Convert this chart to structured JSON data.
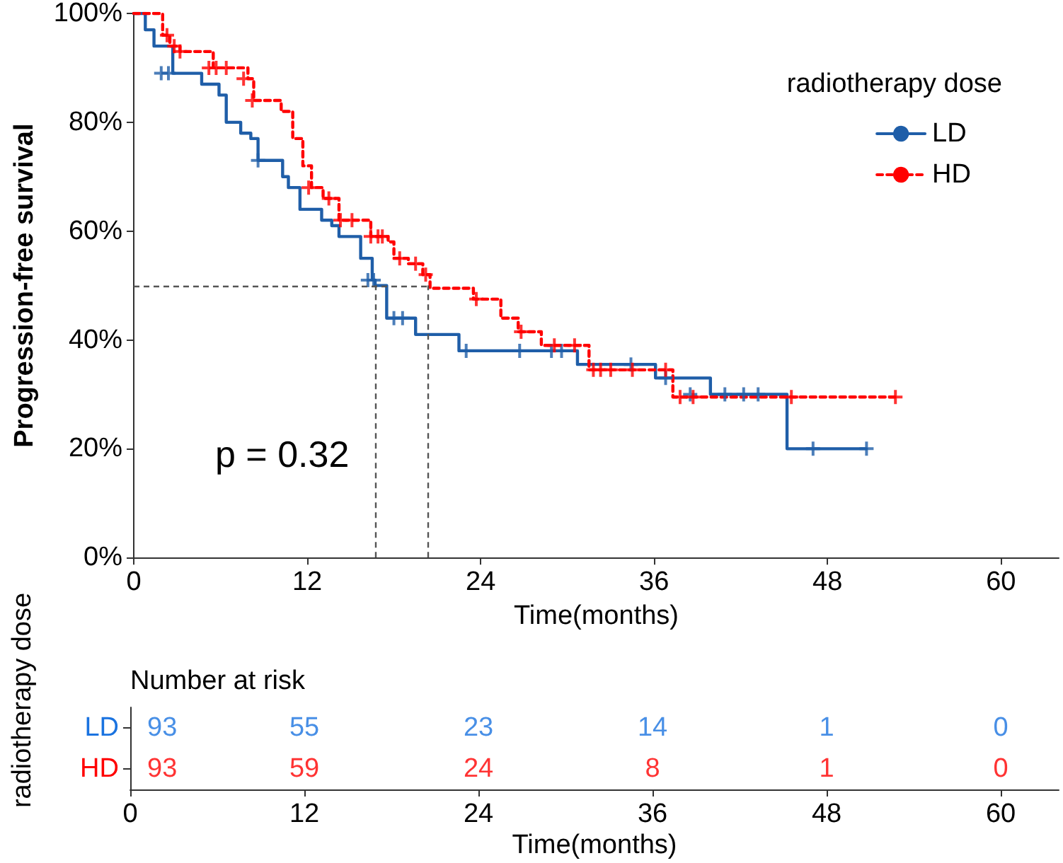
{
  "chart_data": [
    {
      "type": "step",
      "ylabel": "Progression-free survival",
      "xlabel": "Time(months)",
      "legend_title": "radiotherapy dose",
      "legend": "top right",
      "marker": "none",
      "grid": false,
      "xlim": [
        0,
        64
      ],
      "xticks": [
        0,
        12,
        24,
        36,
        48,
        60
      ],
      "ylim": [
        0,
        100
      ],
      "yticks": [
        {
          "value": 0,
          "label": "0%"
        },
        {
          "value": 20,
          "label": "20%"
        },
        {
          "value": 40,
          "label": "40%"
        },
        {
          "value": 60,
          "label": "60%"
        },
        {
          "value": 80,
          "label": "80%"
        },
        {
          "value": 100,
          "label": "100%"
        }
      ],
      "annotations": [
        "p = 0.32"
      ],
      "ref_lines": [
        {
          "axis": "y",
          "value": 50,
          "color": "#555555",
          "line_style": "dashed"
        },
        {
          "axis": "x",
          "value": 16.7,
          "color": "#555555",
          "line_style": "dashed"
        },
        {
          "axis": "x",
          "value": 20.3,
          "color": "#555555",
          "line_style": "dashed"
        }
      ],
      "series": [
        {
          "name": "LD",
          "color": "#1f5ea8",
          "line_style": "solid",
          "x": [
            0,
            0.8,
            1.4,
            2.7,
            4.7,
            5.9,
            6.4,
            7.4,
            8.1,
            8.6,
            10.3,
            10.7,
            11.5,
            13,
            13.7,
            14.2,
            15.7,
            16.5,
            16.7,
            17.5,
            19.5,
            22.5,
            30.7,
            36.1,
            39.9,
            45.2,
            50.7
          ],
          "values": [
            100,
            97,
            94,
            89,
            87,
            85,
            80,
            78,
            77,
            73,
            70,
            68,
            64,
            62,
            61,
            59,
            55,
            51,
            50,
            44,
            41,
            38,
            35.5,
            33,
            30,
            20,
            20
          ]
        },
        {
          "name": "HD",
          "color": "#ff0000",
          "line_style": "dashed",
          "x": [
            0,
            2,
            2.5,
            3.2,
            5.5,
            7.9,
            8.3,
            10.2,
            11,
            11.7,
            12.3,
            13.1,
            14.2,
            16.4,
            17.6,
            18,
            19,
            20,
            20.5,
            23.5,
            25.4,
            26.6,
            28.2,
            31.5,
            37.3,
            52.7
          ],
          "values": [
            100,
            96,
            94,
            93,
            90,
            88,
            84,
            82,
            77,
            72,
            68,
            66,
            62,
            59,
            58,
            55,
            54,
            52,
            49.5,
            47.5,
            44,
            41.5,
            39,
            34.5,
            29.5,
            29.5
          ]
        },
        {
          "type": "scatter",
          "marker": "cross",
          "color": "#1f5ea8",
          "x": [
            1.9,
            2.4,
            8.6,
            16.2,
            16.6,
            18,
            18.6,
            23,
            26.7,
            28.9,
            29.6,
            34.4,
            36.8,
            38.5,
            40.9,
            42.2,
            43.2,
            47,
            50.7
          ],
          "values": [
            89,
            89,
            73,
            51,
            51,
            44,
            44,
            38,
            38,
            38,
            38,
            35.5,
            33,
            30,
            30,
            30,
            30,
            20,
            20
          ]
        },
        {
          "type": "scatter",
          "marker": "cross",
          "color": "#ff0000",
          "x": [
            2.3,
            2.8,
            3.2,
            5.2,
            5.7,
            6.4,
            7.6,
            8.2,
            12.1,
            13.5,
            14.3,
            15.1,
            16.4,
            16.9,
            17.2,
            18.4,
            19.5,
            20.2,
            23.7,
            26.8,
            29.1,
            30.5,
            31.8,
            32.3,
            33,
            34.5,
            36.8,
            37.8,
            38.7,
            45.5,
            52.7
          ],
          "values": [
            96,
            94,
            93,
            90,
            90,
            90,
            88,
            84,
            68,
            66,
            62,
            62,
            59,
            59,
            59,
            55,
            54,
            52,
            47.5,
            41.5,
            39,
            39,
            34.5,
            34.5,
            34.5,
            34.5,
            34.5,
            29.5,
            29.5,
            29.5,
            29.5
          ]
        }
      ]
    },
    {
      "type": "heatmap",
      "title": "Number at risk",
      "xlabel": "Time(months)",
      "ylabel": "radiotherapy dose",
      "data_labels": true,
      "xlim": [
        0,
        64
      ],
      "xticks": [
        0,
        12,
        24,
        36,
        48,
        60
      ],
      "x": [
        0,
        12,
        24,
        36,
        48,
        60
      ],
      "y_categories": [
        "LD",
        "HD"
      ],
      "colors": [
        "#1a73e0",
        "#ff0000"
      ],
      "cells": [
        [
          93,
          55,
          23,
          14,
          1,
          0
        ],
        [
          93,
          59,
          24,
          8,
          1,
          0
        ]
      ]
    }
  ]
}
